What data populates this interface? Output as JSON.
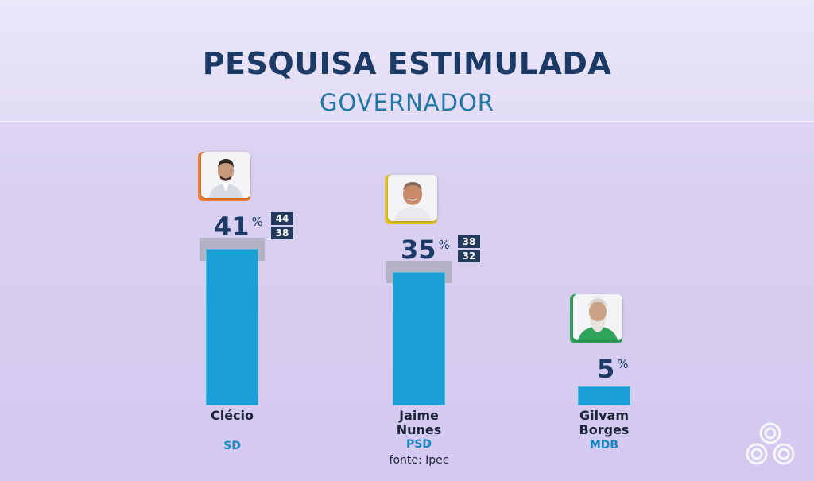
{
  "title": "PESQUISA ESTIMULADA",
  "subtitle": "GOVERNADOR",
  "source": "fonte: Ipec",
  "chart_data": {
    "type": "bar",
    "unit": "%",
    "categories": [
      "Clécio",
      "Jaime Nunes",
      "Gilvam Borges"
    ],
    "values": [
      41,
      35,
      5
    ],
    "ranges": [
      [
        38,
        44
      ],
      [
        32,
        38
      ],
      null
    ],
    "parties": [
      "SD",
      "PSD",
      "MDB"
    ],
    "ylim": [
      0,
      50
    ],
    "grid": false,
    "colors": {
      "bar": "#1aa0d6",
      "margin": "#aaa8b8",
      "photo_frames": [
        "#ef7d2d",
        "#e6c22a",
        "#2fa35a"
      ]
    }
  },
  "candidates": [
    {
      "name_lines": [
        "Clécio"
      ],
      "party": "SD",
      "value_label": "41",
      "range_high": "44",
      "range_low": "38"
    },
    {
      "name_lines": [
        "Jaime",
        "Nunes"
      ],
      "party": "PSD",
      "value_label": "35",
      "range_high": "38",
      "range_low": "32"
    },
    {
      "name_lines": [
        "Gilvam",
        "Borges"
      ],
      "party": "MDB",
      "value_label": "5",
      "range_high": "",
      "range_low": ""
    }
  ],
  "pct_sign": "%"
}
